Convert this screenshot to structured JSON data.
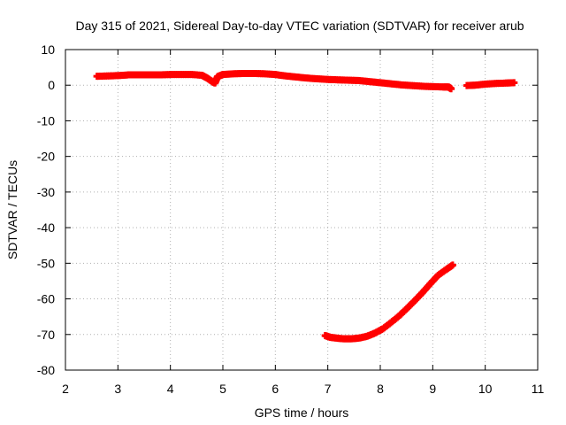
{
  "chart_data": {
    "type": "scatter",
    "title": "Day 315 of 2021, Sidereal Day-to-day VTEC variation (SDTVAR) for receiver arub",
    "xlabel": "GPS time / hours",
    "ylabel": "SDTVAR / TECUs",
    "xlim": [
      2,
      11
    ],
    "ylim": [
      -80,
      10
    ],
    "xticks": [
      2,
      3,
      4,
      5,
      6,
      7,
      8,
      9,
      10,
      11
    ],
    "yticks": [
      -80,
      -70,
      -60,
      -50,
      -40,
      -30,
      -20,
      -10,
      0,
      10
    ],
    "grid": true,
    "legend": "none",
    "colors": {
      "series": "#ff0000",
      "grid": "#b0b0b0",
      "axes": "#000000"
    },
    "series": [
      {
        "marker": "plus",
        "points": [
          [
            2.6,
            2.5
          ],
          [
            2.8,
            2.6
          ],
          [
            3.0,
            2.7
          ],
          [
            3.2,
            2.9
          ],
          [
            3.4,
            2.9
          ],
          [
            3.6,
            2.9
          ],
          [
            3.8,
            2.9
          ],
          [
            4.0,
            3.0
          ],
          [
            4.2,
            3.0
          ],
          [
            4.4,
            3.0
          ],
          [
            4.6,
            2.8
          ],
          [
            4.7,
            2.0
          ],
          [
            4.8,
            1.0
          ],
          [
            4.85,
            0.6
          ],
          [
            4.9,
            2.4
          ],
          [
            5.0,
            3.0
          ],
          [
            5.2,
            3.2
          ],
          [
            5.4,
            3.3
          ],
          [
            5.6,
            3.3
          ],
          [
            5.8,
            3.2
          ],
          [
            6.0,
            3.0
          ],
          [
            6.2,
            2.6
          ],
          [
            6.4,
            2.3
          ],
          [
            6.6,
            2.0
          ],
          [
            6.8,
            1.8
          ],
          [
            7.0,
            1.6
          ],
          [
            7.2,
            1.5
          ],
          [
            7.4,
            1.4
          ],
          [
            7.6,
            1.3
          ],
          [
            7.8,
            1.0
          ],
          [
            8.0,
            0.7
          ],
          [
            8.2,
            0.4
          ],
          [
            8.4,
            0.1
          ],
          [
            8.6,
            -0.1
          ],
          [
            8.8,
            -0.3
          ],
          [
            9.0,
            -0.4
          ],
          [
            9.2,
            -0.5
          ],
          [
            9.3,
            -0.5
          ],
          [
            9.35,
            -1.0
          ],
          [
            9.65,
            -0.1
          ],
          [
            9.8,
            0.0
          ],
          [
            10.0,
            0.3
          ],
          [
            10.2,
            0.5
          ],
          [
            10.4,
            0.6
          ],
          [
            10.55,
            0.7
          ]
        ]
      },
      {
        "marker": "plus",
        "points": [
          [
            6.95,
            -70.3
          ],
          [
            7.05,
            -70.8
          ],
          [
            7.15,
            -71.0
          ],
          [
            7.3,
            -71.2
          ],
          [
            7.45,
            -71.2
          ],
          [
            7.6,
            -71.0
          ],
          [
            7.75,
            -70.5
          ],
          [
            7.9,
            -69.6
          ],
          [
            8.05,
            -68.4
          ],
          [
            8.2,
            -66.7
          ],
          [
            8.35,
            -64.9
          ],
          [
            8.5,
            -62.8
          ],
          [
            8.65,
            -60.6
          ],
          [
            8.8,
            -58.3
          ],
          [
            8.95,
            -55.8
          ],
          [
            9.1,
            -53.4
          ],
          [
            9.25,
            -51.8
          ],
          [
            9.38,
            -50.5
          ]
        ]
      }
    ]
  }
}
